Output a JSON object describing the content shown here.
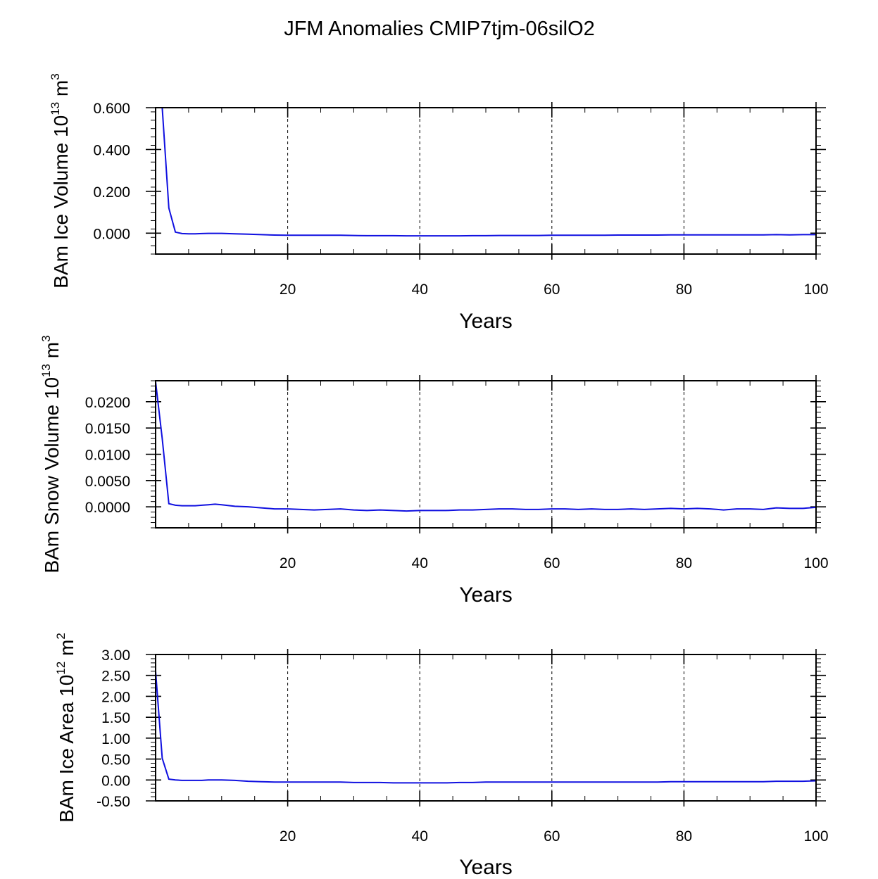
{
  "title": "JFM Anomalies CMIP7tjm-06silO2",
  "colors": {
    "line": "#1010e0",
    "axis": "#000000",
    "grid": "#000000",
    "background": "#ffffff"
  },
  "chart_data": [
    {
      "type": "line",
      "title": "",
      "xlabel": "Years",
      "ylabel": {
        "text": "BAm Ice Volume 10",
        "exp": "13",
        "unit": " m",
        "unit_exp": "3"
      },
      "xlim": [
        0,
        100
      ],
      "ylim": [
        -0.1,
        0.6
      ],
      "xticks": [
        20,
        40,
        60,
        80,
        100
      ],
      "xtick_labels": [
        "20",
        "40",
        "60",
        "80",
        "100"
      ],
      "yticks": [
        0.0,
        0.2,
        0.4,
        0.6
      ],
      "ytick_labels": [
        "0.000",
        "0.200",
        "0.400",
        "0.600"
      ],
      "grid_x": [
        20,
        40,
        60,
        80
      ],
      "series": [
        {
          "name": "BAm Ice Volume",
          "x": [
            1,
            2,
            3,
            4,
            5,
            6,
            7,
            8,
            9,
            10,
            12,
            14,
            16,
            18,
            20,
            22,
            24,
            26,
            28,
            30,
            32,
            34,
            36,
            38,
            40,
            42,
            44,
            46,
            48,
            50,
            52,
            54,
            56,
            58,
            60,
            62,
            64,
            66,
            68,
            70,
            72,
            74,
            76,
            78,
            80,
            82,
            84,
            86,
            88,
            90,
            92,
            94,
            96,
            98,
            100
          ],
          "values": [
            0.6,
            0.12,
            0.005,
            -0.002,
            -0.003,
            -0.003,
            -0.002,
            -0.001,
            -0.001,
            -0.001,
            -0.003,
            -0.005,
            -0.007,
            -0.009,
            -0.01,
            -0.01,
            -0.01,
            -0.01,
            -0.01,
            -0.011,
            -0.012,
            -0.012,
            -0.012,
            -0.013,
            -0.013,
            -0.013,
            -0.013,
            -0.013,
            -0.012,
            -0.012,
            -0.011,
            -0.011,
            -0.011,
            -0.011,
            -0.01,
            -0.01,
            -0.01,
            -0.01,
            -0.01,
            -0.009,
            -0.009,
            -0.009,
            -0.009,
            -0.008,
            -0.008,
            -0.008,
            -0.008,
            -0.008,
            -0.008,
            -0.008,
            -0.008,
            -0.007,
            -0.008,
            -0.007,
            -0.007
          ]
        }
      ]
    },
    {
      "type": "line",
      "title": "",
      "xlabel": "Years",
      "ylabel": {
        "text": "BAm Snow Volume 10",
        "exp": "13",
        "unit": " m",
        "unit_exp": "3"
      },
      "xlim": [
        0,
        100
      ],
      "ylim": [
        -0.004,
        0.024
      ],
      "xticks": [
        20,
        40,
        60,
        80,
        100
      ],
      "xtick_labels": [
        "20",
        "40",
        "60",
        "80",
        "100"
      ],
      "yticks": [
        0.0,
        0.005,
        0.01,
        0.015,
        0.02
      ],
      "ytick_labels": [
        "0.0000",
        "0.0050",
        "0.0100",
        "0.0150",
        "0.0200"
      ],
      "grid_x": [
        20,
        40,
        60,
        80
      ],
      "series": [
        {
          "name": "BAm Snow Volume",
          "x": [
            0,
            1,
            2,
            3,
            4,
            5,
            6,
            7,
            8,
            9,
            10,
            12,
            14,
            16,
            18,
            20,
            22,
            24,
            26,
            28,
            30,
            32,
            34,
            36,
            38,
            40,
            42,
            44,
            46,
            48,
            50,
            52,
            54,
            56,
            58,
            60,
            62,
            64,
            66,
            68,
            70,
            72,
            74,
            76,
            78,
            80,
            82,
            84,
            86,
            88,
            90,
            92,
            94,
            96,
            98,
            100
          ],
          "values": [
            0.0238,
            0.013,
            0.0006,
            0.0003,
            0.0002,
            0.0002,
            0.0002,
            0.0003,
            0.0004,
            0.0005,
            0.0004,
            0.0001,
            0.0,
            -0.0002,
            -0.0004,
            -0.0004,
            -0.0005,
            -0.0006,
            -0.0005,
            -0.0004,
            -0.0006,
            -0.0007,
            -0.0006,
            -0.0007,
            -0.0008,
            -0.0007,
            -0.0007,
            -0.0007,
            -0.0006,
            -0.0006,
            -0.0005,
            -0.0004,
            -0.0004,
            -0.0005,
            -0.0005,
            -0.0004,
            -0.0004,
            -0.0005,
            -0.0004,
            -0.0005,
            -0.0005,
            -0.0004,
            -0.0005,
            -0.0004,
            -0.0003,
            -0.0004,
            -0.0003,
            -0.0004,
            -0.0006,
            -0.0004,
            -0.0004,
            -0.0005,
            -0.0002,
            -0.0003,
            -0.0003,
            -0.0001
          ]
        }
      ]
    },
    {
      "type": "line",
      "title": "",
      "xlabel": "Years",
      "ylabel": {
        "text": "BAm Ice Area 10",
        "exp": "12",
        "unit": " m",
        "unit_exp": "2"
      },
      "xlim": [
        0,
        100
      ],
      "ylim": [
        -0.5,
        3.0
      ],
      "xticks": [
        20,
        40,
        60,
        80,
        100
      ],
      "xtick_labels": [
        "20",
        "40",
        "60",
        "80",
        "100"
      ],
      "yticks": [
        -0.5,
        0.0,
        0.5,
        1.0,
        1.5,
        2.0,
        2.5,
        3.0
      ],
      "ytick_labels": [
        "-0.50",
        "0.00",
        "0.50",
        "1.00",
        "1.50",
        "2.00",
        "2.50",
        "3.00"
      ],
      "grid_x": [
        20,
        40,
        60,
        80
      ],
      "series": [
        {
          "name": "BAm Ice Area",
          "x": [
            0,
            1,
            2,
            3,
            4,
            5,
            6,
            7,
            8,
            9,
            10,
            12,
            14,
            16,
            18,
            20,
            22,
            24,
            26,
            28,
            30,
            32,
            34,
            36,
            38,
            40,
            42,
            44,
            46,
            48,
            50,
            52,
            54,
            56,
            58,
            60,
            62,
            64,
            66,
            68,
            70,
            72,
            74,
            76,
            78,
            80,
            82,
            84,
            86,
            88,
            90,
            92,
            94,
            96,
            98,
            100
          ],
          "values": [
            2.6,
            0.52,
            0.02,
            0.0,
            -0.01,
            -0.01,
            -0.01,
            -0.01,
            0.0,
            0.0,
            0.0,
            -0.01,
            -0.03,
            -0.04,
            -0.05,
            -0.05,
            -0.05,
            -0.05,
            -0.05,
            -0.05,
            -0.06,
            -0.06,
            -0.06,
            -0.07,
            -0.07,
            -0.07,
            -0.07,
            -0.07,
            -0.06,
            -0.06,
            -0.05,
            -0.05,
            -0.05,
            -0.05,
            -0.05,
            -0.05,
            -0.05,
            -0.05,
            -0.05,
            -0.05,
            -0.05,
            -0.05,
            -0.05,
            -0.05,
            -0.04,
            -0.04,
            -0.04,
            -0.04,
            -0.04,
            -0.04,
            -0.04,
            -0.04,
            -0.03,
            -0.03,
            -0.03,
            -0.02
          ]
        }
      ]
    }
  ]
}
